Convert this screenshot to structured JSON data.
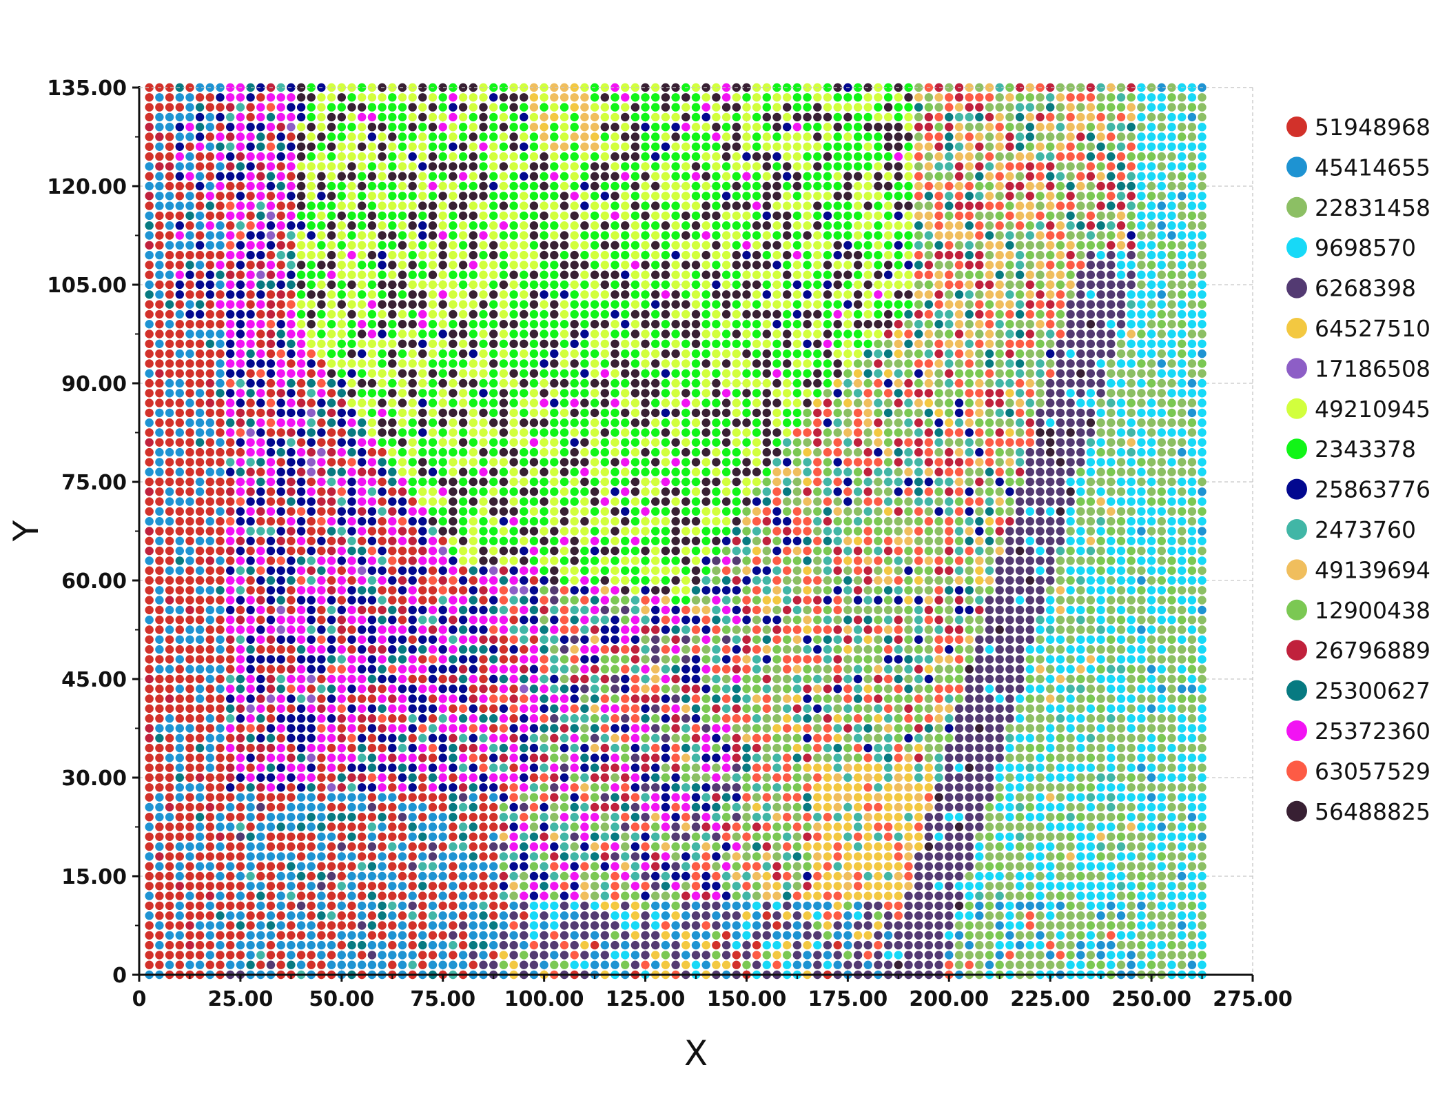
{
  "chart_data": {
    "type": "scatter",
    "title": "",
    "xlabel": "X",
    "ylabel": "Y",
    "xlim": [
      0,
      275
    ],
    "ylim": [
      0,
      135
    ],
    "grid": true,
    "legend_position": "right",
    "x_ticks": [
      "0",
      "25.00",
      "50.00",
      "75.00",
      "100.00",
      "125.00",
      "150.00",
      "175.00",
      "200.00",
      "225.00",
      "250.00",
      "275.00"
    ],
    "y_ticks": [
      "0",
      "15.00",
      "30.00",
      "45.00",
      "60.00",
      "75.00",
      "90.00",
      "105.00",
      "120.00",
      "135.00"
    ],
    "grid_x_step": 2.5,
    "grid_y_step": 1.5,
    "grid_x_max": 262.5,
    "grid_y_max": 135,
    "series": [
      {
        "name": "51948968",
        "color": "#d2312a"
      },
      {
        "name": "45414655",
        "color": "#1e93d2"
      },
      {
        "name": "22831458",
        "color": "#8cbf64"
      },
      {
        "name": "9698570",
        "color": "#17d9f7"
      },
      {
        "name": "6268398",
        "color": "#533a72"
      },
      {
        "name": "64527510",
        "color": "#f3c841"
      },
      {
        "name": "17186508",
        "color": "#8d5ec6"
      },
      {
        "name": "49210945",
        "color": "#d2ff3d"
      },
      {
        "name": "2343378",
        "color": "#11f517"
      },
      {
        "name": "25863776",
        "color": "#02088f"
      },
      {
        "name": "2473760",
        "color": "#41b6a6"
      },
      {
        "name": "49139694",
        "color": "#f0be5d"
      },
      {
        "name": "12900438",
        "color": "#7bc853"
      },
      {
        "name": "26796889",
        "color": "#c0213c"
      },
      {
        "name": "25300627",
        "color": "#077a81"
      },
      {
        "name": "25372360",
        "color": "#f213f3"
      },
      {
        "name": "63057529",
        "color": "#fd5b45"
      },
      {
        "name": "56488825",
        "color": "#382033"
      }
    ]
  }
}
